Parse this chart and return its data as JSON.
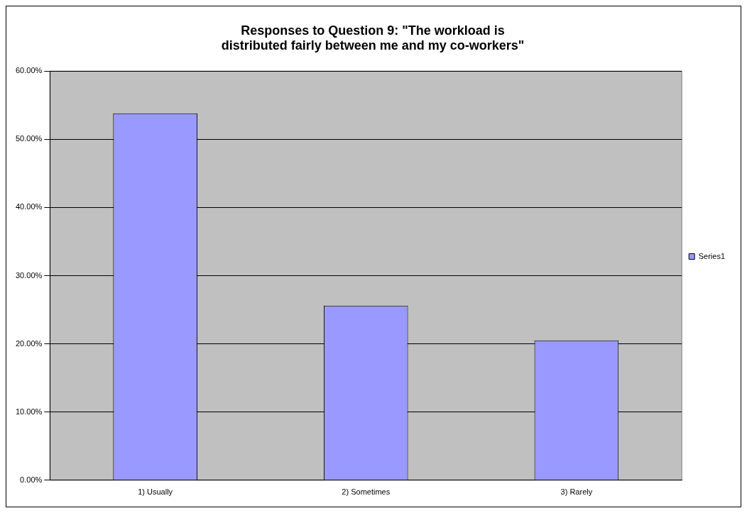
{
  "chart_data": {
    "type": "bar",
    "title": "Responses to Question 9: \"The workload is distributed fairly between me and my co-workers\"",
    "categories": [
      "1) Usually",
      "2) Sometimes",
      "3) Rarely"
    ],
    "series": [
      {
        "name": "Series1",
        "color": "#9999ff",
        "values": [
          53.8,
          25.6,
          20.5
        ]
      }
    ],
    "ylim": [
      0,
      60
    ],
    "yticks": [
      {
        "value": 0,
        "label": "0.00%"
      },
      {
        "value": 10,
        "label": "10.00%"
      },
      {
        "value": 20,
        "label": "20.00%"
      },
      {
        "value": 30,
        "label": "30.00%"
      },
      {
        "value": 40,
        "label": "40.00%"
      },
      {
        "value": 50,
        "label": "50.00%"
      },
      {
        "value": 60,
        "label": "60.00%"
      }
    ],
    "grid": "y",
    "legend": "right"
  }
}
